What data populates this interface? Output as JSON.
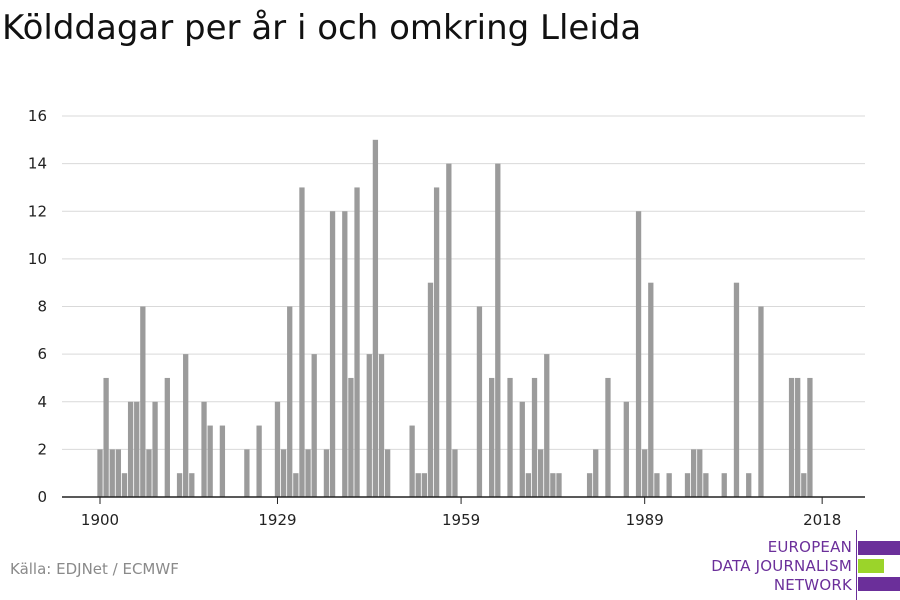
{
  "title": "Kölddagar per år i och omkring Lleida",
  "source": "Källa: EDJNet / ECMWF",
  "logo": {
    "lines": [
      "EUROPEAN",
      "DATA JOURNALISM",
      "NETWORK"
    ],
    "colors": {
      "purple": "#6b2f9a",
      "green": "#9bd42a"
    }
  },
  "colors": {
    "bar": "#9b9b9b",
    "grid": "#d9d9d9",
    "axis": "#222222"
  },
  "chart_data": {
    "type": "bar",
    "title": "Kölddagar per år i och omkring Lleida",
    "xlabel": "",
    "ylabel": "",
    "xlim": [
      1900,
      2018
    ],
    "ylim": [
      0,
      16
    ],
    "x_ticks": [
      1900,
      1929,
      1959,
      1989,
      2018
    ],
    "y_ticks": [
      0,
      2,
      4,
      6,
      8,
      10,
      12,
      14,
      16
    ],
    "grid": true,
    "x": [
      1900,
      1901,
      1902,
      1903,
      1904,
      1905,
      1906,
      1907,
      1908,
      1909,
      1910,
      1911,
      1912,
      1913,
      1914,
      1915,
      1916,
      1917,
      1918,
      1919,
      1920,
      1921,
      1922,
      1923,
      1924,
      1925,
      1926,
      1927,
      1928,
      1929,
      1930,
      1931,
      1932,
      1933,
      1934,
      1935,
      1936,
      1937,
      1938,
      1939,
      1940,
      1941,
      1942,
      1943,
      1944,
      1945,
      1946,
      1947,
      1948,
      1949,
      1950,
      1951,
      1952,
      1953,
      1954,
      1955,
      1956,
      1957,
      1958,
      1959,
      1960,
      1961,
      1962,
      1963,
      1964,
      1965,
      1966,
      1967,
      1968,
      1969,
      1970,
      1971,
      1972,
      1973,
      1974,
      1975,
      1976,
      1977,
      1978,
      1979,
      1980,
      1981,
      1982,
      1983,
      1984,
      1985,
      1986,
      1987,
      1988,
      1989,
      1990,
      1991,
      1992,
      1993,
      1994,
      1995,
      1996,
      1997,
      1998,
      1999,
      2000,
      2001,
      2002,
      2003,
      2004,
      2005,
      2006,
      2007,
      2008,
      2009,
      2010,
      2011,
      2012,
      2013,
      2014,
      2015,
      2016,
      2017,
      2018
    ],
    "values": [
      2,
      5,
      2,
      2,
      1,
      4,
      4,
      8,
      2,
      4,
      0,
      5,
      0,
      1,
      6,
      1,
      0,
      4,
      3,
      0,
      3,
      0,
      0,
      0,
      2,
      0,
      3,
      0,
      0,
      4,
      2,
      8,
      1,
      13,
      2,
      6,
      0,
      2,
      12,
      0,
      12,
      5,
      13,
      0,
      6,
      15,
      6,
      2,
      0,
      0,
      0,
      3,
      1,
      1,
      9,
      13,
      0,
      14,
      2,
      0,
      0,
      0,
      8,
      0,
      5,
      14,
      0,
      5,
      0,
      4,
      1,
      5,
      2,
      6,
      1,
      1,
      0,
      0,
      0,
      0,
      1,
      2,
      0,
      5,
      0,
      0,
      4,
      0,
      12,
      2,
      9,
      1,
      0,
      1,
      0,
      0,
      1,
      2,
      2,
      1,
      0,
      0,
      1,
      0,
      9,
      0,
      1,
      0,
      8,
      0,
      0,
      0,
      0,
      5,
      5,
      1,
      5,
      0,
      0
    ]
  }
}
